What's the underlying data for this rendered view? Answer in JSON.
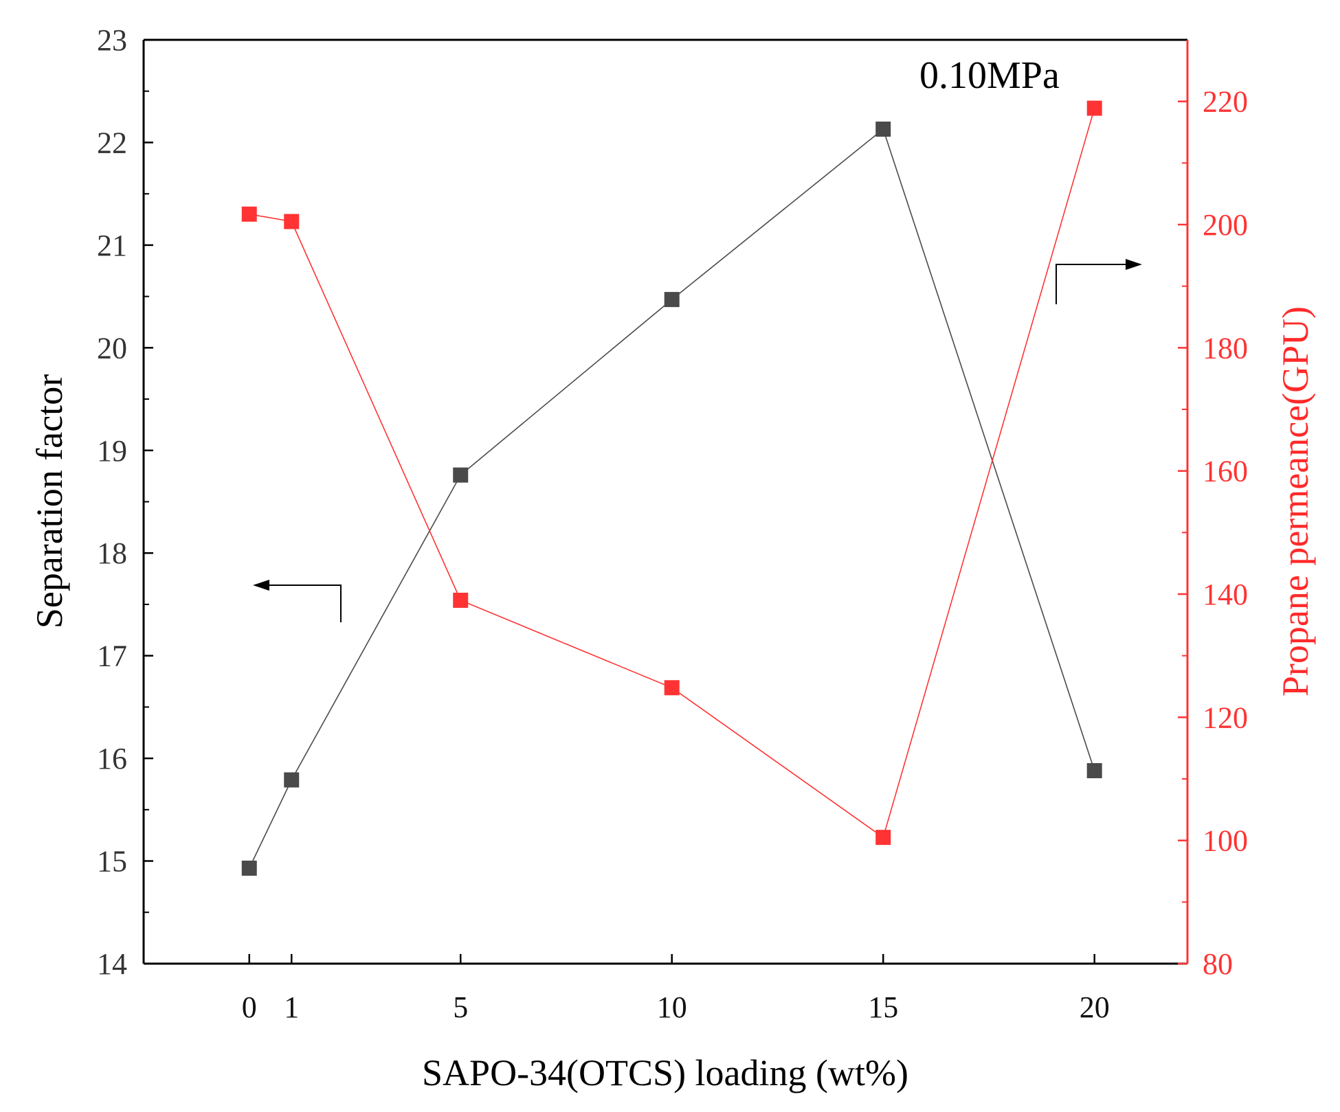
{
  "chart_data": {
    "type": "line",
    "annotation": "0.10MPa",
    "xlabel": "SAPO-34(OTCS) loading (wt%)",
    "x_ticks": [
      0,
      1,
      5,
      10,
      15,
      20
    ],
    "xlim": [
      -2.5,
      22.2
    ],
    "ylabel_left": "Separation factor",
    "ylim_left": [
      14,
      23
    ],
    "yticks_left": [
      14,
      15,
      16,
      17,
      18,
      19,
      20,
      21,
      22,
      23
    ],
    "ylabel_right": "Propane permeance(GPU)",
    "ylim_right": [
      80,
      230
    ],
    "yticks_right": [
      80,
      100,
      120,
      140,
      160,
      180,
      200,
      220
    ],
    "grid": false,
    "series": [
      {
        "name": "Separation factor",
        "axis": "left",
        "color": "#4a4a4a",
        "marker": "square",
        "x": [
          0,
          1,
          5,
          10,
          15,
          20
        ],
        "values": [
          14.93,
          15.79,
          18.76,
          20.47,
          22.13,
          15.88
        ]
      },
      {
        "name": "Propane permeance",
        "axis": "right",
        "color": "#ff3333",
        "marker": "square",
        "x": [
          0,
          1,
          5,
          10,
          15,
          20
        ],
        "values": [
          201.7,
          200.5,
          139.0,
          124.8,
          100.5,
          218.9
        ]
      }
    ],
    "indicators": [
      {
        "series": "Separation factor",
        "direction": "left"
      },
      {
        "series": "Propane permeance",
        "direction": "right"
      }
    ]
  }
}
